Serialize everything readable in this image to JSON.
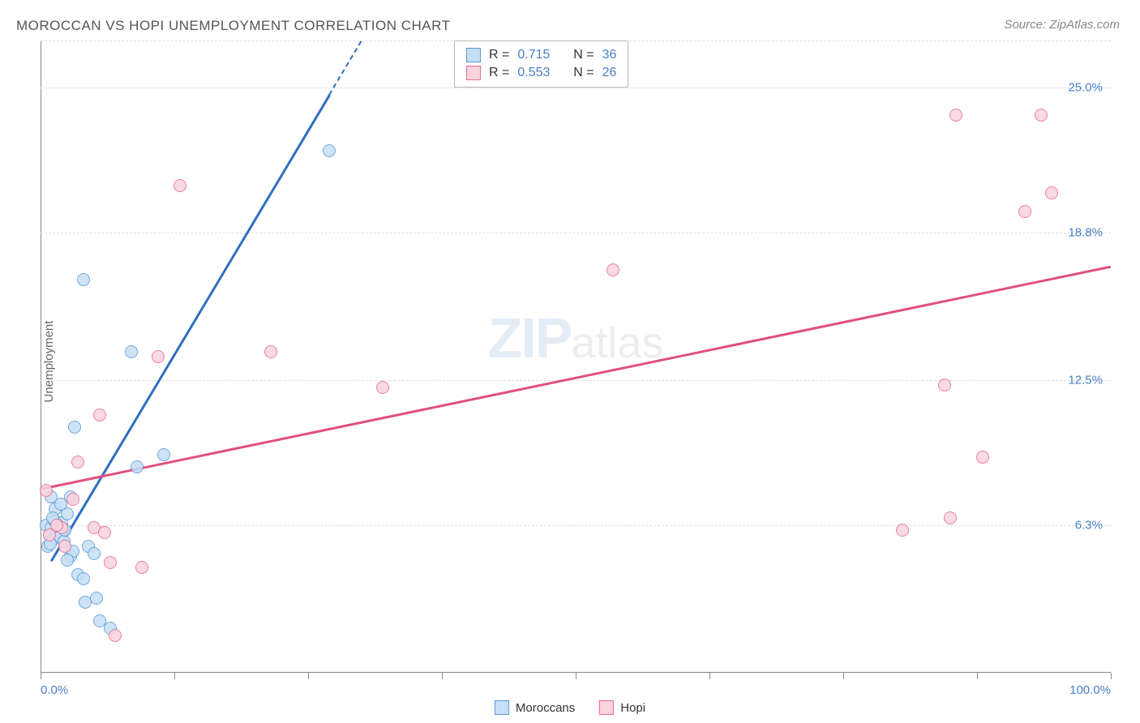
{
  "title": "MOROCCAN VS HOPI UNEMPLOYMENT CORRELATION CHART",
  "source": "Source: ZipAtlas.com",
  "y_axis_label": "Unemployment",
  "watermark": {
    "zip": "ZIP",
    "atlas": "atlas"
  },
  "chart": {
    "type": "scatter",
    "background_color": "#ffffff",
    "grid_color": "#dddddd",
    "axis_color": "#888888",
    "xlim": [
      0,
      100
    ],
    "ylim": [
      0,
      27
    ],
    "x_ticks": [
      0,
      12.5,
      25,
      37.5,
      50,
      62.5,
      75,
      87.5,
      100
    ],
    "x_tick_labels": {
      "0": "0.0%",
      "100": "100.0%"
    },
    "y_grid": [
      6.3,
      12.5,
      18.8,
      25.0,
      27.0
    ],
    "y_tick_labels": [
      "6.3%",
      "12.5%",
      "18.8%",
      "25.0%"
    ],
    "marker_size": 16,
    "marker_opacity": 0.85,
    "series": [
      {
        "name": "Moroccans",
        "fill": "#c6dff5",
        "stroke": "#5a9bd4",
        "R": "0.715",
        "N": "36",
        "trend": {
          "x1": 1,
          "y1": 4.8,
          "x2": 30,
          "y2": 27,
          "dashed_after_x": 27,
          "color": "#2e6fc1"
        },
        "points": [
          [
            0.5,
            6.3
          ],
          [
            0.8,
            5.9
          ],
          [
            1.0,
            6.2
          ],
          [
            1.2,
            5.7
          ],
          [
            1.5,
            6.0
          ],
          [
            1.3,
            6.5
          ],
          [
            1.8,
            5.8
          ],
          [
            2.0,
            6.4
          ],
          [
            2.2,
            5.6
          ],
          [
            1.0,
            7.5
          ],
          [
            1.4,
            7.0
          ],
          [
            2.5,
            6.8
          ],
          [
            0.7,
            5.4
          ],
          [
            1.6,
            6.3
          ],
          [
            2.8,
            5.0
          ],
          [
            3.0,
            5.2
          ],
          [
            3.5,
            4.2
          ],
          [
            4.0,
            4.0
          ],
          [
            4.2,
            3.0
          ],
          [
            5.2,
            3.2
          ],
          [
            5.5,
            2.2
          ],
          [
            6.5,
            1.9
          ],
          [
            2.5,
            4.8
          ],
          [
            4.5,
            5.4
          ],
          [
            3.2,
            10.5
          ],
          [
            9.0,
            8.8
          ],
          [
            11.5,
            9.3
          ],
          [
            4.0,
            16.8
          ],
          [
            8.5,
            13.7
          ],
          [
            5.0,
            5.1
          ],
          [
            1.9,
            7.2
          ],
          [
            27.0,
            22.3
          ],
          [
            2.8,
            7.5
          ],
          [
            1.1,
            6.6
          ],
          [
            0.9,
            5.5
          ],
          [
            2.3,
            6.1
          ]
        ]
      },
      {
        "name": "Hopi",
        "fill": "#f9d3dd",
        "stroke": "#e76b94",
        "R": "0.553",
        "N": "26",
        "trend": {
          "x1": 0,
          "y1": 7.9,
          "x2": 100,
          "y2": 17.4,
          "color": "#e14f7d"
        },
        "points": [
          [
            0.5,
            7.8
          ],
          [
            2.0,
            6.2
          ],
          [
            3.5,
            9.0
          ],
          [
            5.0,
            6.2
          ],
          [
            6.0,
            6.0
          ],
          [
            6.5,
            4.7
          ],
          [
            9.5,
            4.5
          ],
          [
            7.0,
            1.6
          ],
          [
            5.5,
            11.0
          ],
          [
            11.0,
            13.5
          ],
          [
            13.0,
            20.8
          ],
          [
            21.5,
            13.7
          ],
          [
            32.0,
            12.2
          ],
          [
            53.5,
            17.2
          ],
          [
            80.5,
            6.1
          ],
          [
            85.0,
            6.6
          ],
          [
            84.5,
            12.3
          ],
          [
            88.0,
            9.2
          ],
          [
            85.5,
            23.8
          ],
          [
            92.0,
            19.7
          ],
          [
            93.5,
            23.8
          ],
          [
            94.5,
            20.5
          ],
          [
            0.8,
            5.9
          ],
          [
            3.0,
            7.4
          ],
          [
            1.5,
            6.3
          ],
          [
            2.3,
            5.4
          ]
        ]
      }
    ]
  },
  "stats_labels": {
    "R": "R  =",
    "N": "N  ="
  },
  "legend": {
    "s1": "Moroccans",
    "s2": "Hopi"
  }
}
